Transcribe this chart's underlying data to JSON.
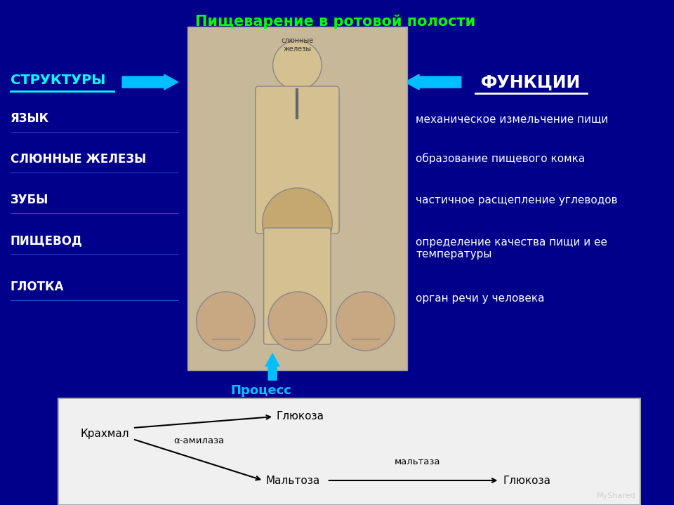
{
  "title": "Пищеварение в ротовой полости",
  "title_color": "#00FF00",
  "bg_color": "#00008B",
  "structures_label": "СТРУКТУРЫ",
  "structures_color": "#00FFFF",
  "functions_label": "ФУНКЦИИ",
  "functions_color": "#FFFFFF",
  "structures": [
    "ЯЗЫК",
    "СЛЮННЫЕ ЖЕЛЕЗЫ",
    "ЗУБЫ",
    "ПИЩЕВОД",
    "ГЛОТКА"
  ],
  "functions": [
    "механическое измельчение пищи",
    "образование пищевого комка",
    "частичное расщепление углеводов",
    "определение качества пищи и ее\nтемпературы",
    "орган речи у человека"
  ],
  "process_label": "Процесс",
  "process_color": "#00BFFF",
  "arrow_color": "#00BFFF",
  "text_color": "#FFFFFF",
  "line_color": "#4499FF",
  "bottom_bg": "#F0F0F0",
  "chem_text_color": "#000000"
}
